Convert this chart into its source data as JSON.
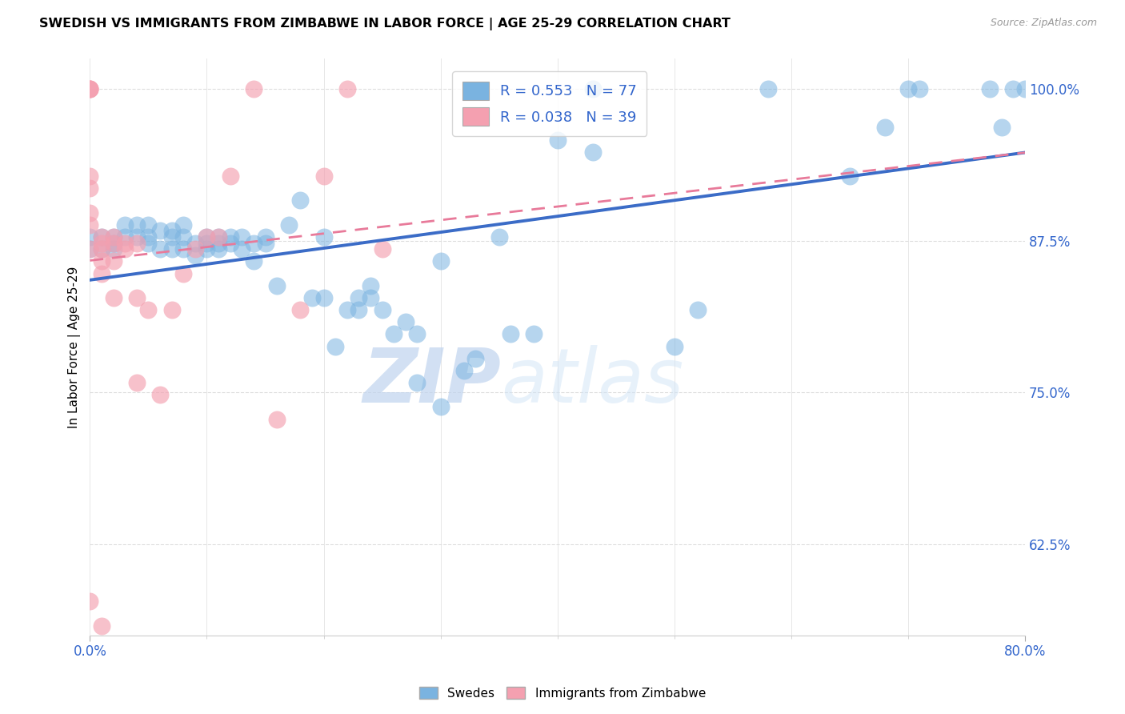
{
  "title": "SWEDISH VS IMMIGRANTS FROM ZIMBABWE IN LABOR FORCE | AGE 25-29 CORRELATION CHART",
  "source": "Source: ZipAtlas.com",
  "xlabel": "",
  "ylabel": "In Labor Force | Age 25-29",
  "x_min": 0.0,
  "x_max": 0.8,
  "y_min": 0.55,
  "y_max": 1.025,
  "x_ticks": [
    0.0,
    0.1,
    0.2,
    0.3,
    0.4,
    0.5,
    0.6,
    0.7,
    0.8
  ],
  "y_ticks": [
    0.625,
    0.75,
    0.875,
    1.0
  ],
  "y_tick_labels": [
    "62.5%",
    "75.0%",
    "87.5%",
    "100.0%"
  ],
  "grid_color": "#dddddd",
  "background_color": "#ffffff",
  "blue_color": "#7ab3e0",
  "pink_color": "#f4a0b0",
  "blue_line_color": "#3b6cc7",
  "pink_line_color": "#e87a9a",
  "R_blue": 0.553,
  "N_blue": 77,
  "R_pink": 0.038,
  "N_pink": 39,
  "legend_label_blue": "Swedes",
  "legend_label_pink": "Immigrants from Zimbabwe",
  "watermark_zip": "ZIP",
  "watermark_atlas": "atlas",
  "blue_scatter_x": [
    0.0,
    0.0,
    0.01,
    0.01,
    0.02,
    0.02,
    0.02,
    0.03,
    0.03,
    0.04,
    0.04,
    0.05,
    0.05,
    0.05,
    0.06,
    0.06,
    0.07,
    0.07,
    0.07,
    0.08,
    0.08,
    0.08,
    0.09,
    0.09,
    0.1,
    0.1,
    0.1,
    0.11,
    0.11,
    0.11,
    0.12,
    0.12,
    0.13,
    0.13,
    0.14,
    0.14,
    0.15,
    0.15,
    0.16,
    0.17,
    0.18,
    0.19,
    0.2,
    0.2,
    0.21,
    0.22,
    0.23,
    0.23,
    0.24,
    0.24,
    0.25,
    0.26,
    0.27,
    0.28,
    0.28,
    0.3,
    0.3,
    0.32,
    0.33,
    0.35,
    0.36,
    0.38,
    0.4,
    0.43,
    0.43,
    0.5,
    0.52,
    0.58,
    0.65,
    0.68,
    0.7,
    0.71,
    0.77,
    0.78,
    0.79,
    0.8,
    0.81
  ],
  "blue_scatter_y": [
    0.878,
    0.868,
    0.878,
    0.868,
    0.878,
    0.873,
    0.868,
    0.878,
    0.888,
    0.878,
    0.888,
    0.873,
    0.878,
    0.888,
    0.883,
    0.868,
    0.868,
    0.878,
    0.883,
    0.868,
    0.878,
    0.888,
    0.863,
    0.873,
    0.868,
    0.873,
    0.878,
    0.868,
    0.873,
    0.878,
    0.873,
    0.878,
    0.868,
    0.878,
    0.873,
    0.858,
    0.873,
    0.878,
    0.838,
    0.888,
    0.908,
    0.828,
    0.878,
    0.828,
    0.788,
    0.818,
    0.828,
    0.818,
    0.828,
    0.838,
    0.818,
    0.798,
    0.808,
    0.758,
    0.798,
    0.858,
    0.738,
    0.768,
    0.778,
    0.878,
    0.798,
    0.798,
    0.958,
    0.948,
    1.0,
    0.788,
    0.818,
    1.0,
    0.928,
    0.968,
    1.0,
    1.0,
    1.0,
    0.968,
    1.0,
    1.0,
    1.0
  ],
  "pink_scatter_x": [
    0.0,
    0.0,
    0.0,
    0.0,
    0.0,
    0.0,
    0.0,
    0.0,
    0.0,
    0.01,
    0.01,
    0.01,
    0.01,
    0.01,
    0.02,
    0.02,
    0.02,
    0.02,
    0.03,
    0.03,
    0.04,
    0.04,
    0.04,
    0.05,
    0.06,
    0.07,
    0.08,
    0.09,
    0.1,
    0.11,
    0.12,
    0.14,
    0.16,
    0.18,
    0.2,
    0.22,
    0.25,
    0.0,
    0.01
  ],
  "pink_scatter_y": [
    1.0,
    1.0,
    1.0,
    1.0,
    0.928,
    0.918,
    0.898,
    0.888,
    0.868,
    0.878,
    0.873,
    0.868,
    0.858,
    0.848,
    0.878,
    0.873,
    0.858,
    0.828,
    0.873,
    0.868,
    0.873,
    0.828,
    0.758,
    0.818,
    0.748,
    0.818,
    0.848,
    0.868,
    0.878,
    0.878,
    0.928,
    1.0,
    0.728,
    0.818,
    0.928,
    1.0,
    0.868,
    0.578,
    0.558
  ]
}
